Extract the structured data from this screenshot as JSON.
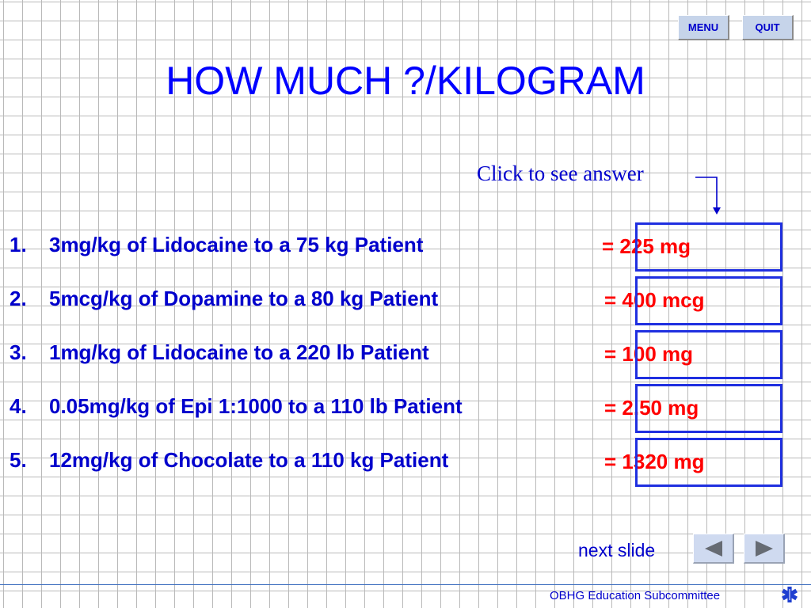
{
  "nav": {
    "menu_label": "MENU",
    "quit_label": "QUIT"
  },
  "title": "HOW MUCH ?/KILOGRAM",
  "hint": "Click to see answer",
  "questions": [
    {
      "number": "1.",
      "text": "3mg/kg of Lidocaine to a 75 kg Patient",
      "answer": "= 225 mg"
    },
    {
      "number": "2.",
      "text": "5mcg/kg of Dopamine to a 80 kg Patient",
      "answer": "= 400 mcg"
    },
    {
      "number": "3.",
      "text": "1mg/kg of Lidocaine to a  220 lb Patient",
      "answer": "= 100 mg"
    },
    {
      "number": "4.",
      "text": "0.05mg/kg of Epi 1:1000 to a 110 lb Patient",
      "answer": "= 2.50 mg"
    },
    {
      "number": "5.",
      "text": "12mg/kg of Chocolate to a 110 kg Patient",
      "answer": "= 1320 mg"
    }
  ],
  "next": {
    "label": "next slide",
    "prev_icon": "triangle-left-icon",
    "next_icon": "triangle-right-icon"
  },
  "footer": {
    "text": "OBHG Education Subcommittee",
    "logo_icon": "star-of-life-icon"
  },
  "colors": {
    "title": "#0000ff",
    "question_text": "#0000cc",
    "answer_text": "#ff0000",
    "answer_box_border": "#1f2fe0",
    "button_face": "#c6d4ea",
    "grid": "#b9b9b9"
  }
}
